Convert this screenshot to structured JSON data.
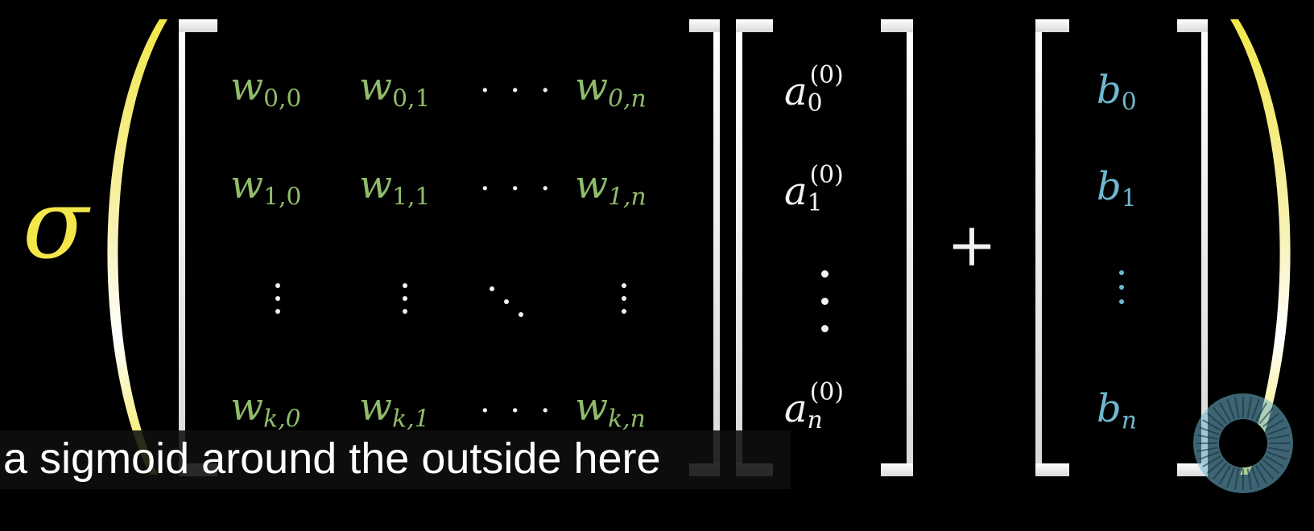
{
  "equation": {
    "sigma": "σ",
    "plus": "+",
    "weights": {
      "symbol": "w",
      "rows": [
        [
          "0,0",
          "0,1",
          "0,n"
        ],
        [
          "1,0",
          "1,1",
          "1,n"
        ],
        [
          "k,0",
          "k,1",
          "k,n"
        ]
      ],
      "ellipsis": "· · ·"
    },
    "activations": {
      "symbol": "a",
      "superscript": "(0)",
      "subscripts": [
        "0",
        "1",
        "n"
      ]
    },
    "biases": {
      "symbol": "b",
      "subscripts": [
        "0",
        "1",
        "n"
      ]
    },
    "colors": {
      "weights": "#8fbc6a",
      "biases": "#6fb7cf",
      "sigma": "#f3e74a",
      "activations": "#f2f2f2"
    }
  },
  "caption": {
    "text": "a sigmoid around the outside here"
  },
  "overlay": {
    "icon": "loading-spinner-icon"
  }
}
